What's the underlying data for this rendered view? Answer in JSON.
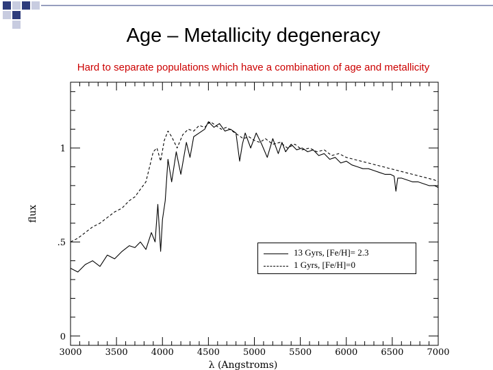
{
  "slide": {
    "title": "Age – Metallicity degeneracy",
    "subtitle": "Hard to separate populations which have a combination of age and metallicity",
    "accent_color": "#2e3c7c",
    "subtitle_color": "#cc0000"
  },
  "chart_data": {
    "type": "line",
    "title": "",
    "xlabel": "λ (Angstroms)",
    "ylabel": "flux",
    "xlim": [
      3000,
      7000
    ],
    "ylim": [
      -0.05,
      1.35
    ],
    "x_ticks": [
      3000,
      3500,
      4000,
      4500,
      5000,
      5500,
      6000,
      6500,
      7000
    ],
    "x_tick_labels": [
      "3000",
      "3500",
      "4000",
      "4500",
      "5000",
      "5500",
      "6000",
      "6500",
      "7000"
    ],
    "y_ticks": [
      0,
      0.5,
      1
    ],
    "y_tick_labels": [
      "0",
      ".5",
      "1"
    ],
    "legend_position": "center-right",
    "series": [
      {
        "name": "13 Gyrs, [Fe/H]= 2.3",
        "style": "solid",
        "x": [
          3000,
          3080,
          3160,
          3240,
          3320,
          3400,
          3480,
          3560,
          3640,
          3700,
          3760,
          3820,
          3880,
          3920,
          3950,
          3980,
          4000,
          4030,
          4060,
          4100,
          4150,
          4200,
          4260,
          4300,
          4340,
          4400,
          4460,
          4500,
          4560,
          4620,
          4680,
          4740,
          4800,
          4840,
          4870,
          4900,
          4960,
          5020,
          5080,
          5140,
          5200,
          5260,
          5300,
          5340,
          5400,
          5460,
          5520,
          5580,
          5640,
          5700,
          5760,
          5820,
          5880,
          5940,
          6000,
          6060,
          6120,
          6180,
          6240,
          6300,
          6360,
          6420,
          6480,
          6520,
          6540,
          6560,
          6600,
          6660,
          6720,
          6780,
          6840,
          6900,
          6960,
          7000
        ],
        "y": [
          0.36,
          0.34,
          0.38,
          0.4,
          0.37,
          0.43,
          0.41,
          0.45,
          0.48,
          0.47,
          0.5,
          0.46,
          0.55,
          0.5,
          0.7,
          0.45,
          0.62,
          0.72,
          0.94,
          0.82,
          0.98,
          0.86,
          1.03,
          0.95,
          1.06,
          1.08,
          1.1,
          1.14,
          1.11,
          1.13,
          1.09,
          1.1,
          1.08,
          0.93,
          1.02,
          1.08,
          1.0,
          1.08,
          1.02,
          0.95,
          1.05,
          0.97,
          1.03,
          0.98,
          1.02,
          0.99,
          1.0,
          0.98,
          0.99,
          0.96,
          0.97,
          0.94,
          0.95,
          0.92,
          0.93,
          0.91,
          0.9,
          0.89,
          0.89,
          0.88,
          0.87,
          0.86,
          0.86,
          0.85,
          0.77,
          0.84,
          0.84,
          0.83,
          0.82,
          0.82,
          0.81,
          0.8,
          0.8,
          0.79
        ]
      },
      {
        "name": "1 Gyrs, [Fe/H]=0",
        "style": "dashed",
        "x": [
          3000,
          3080,
          3160,
          3240,
          3320,
          3400,
          3480,
          3560,
          3640,
          3700,
          3760,
          3820,
          3860,
          3900,
          3940,
          3980,
          4020,
          4060,
          4100,
          4160,
          4220,
          4280,
          4340,
          4400,
          4460,
          4520,
          4580,
          4640,
          4700,
          4760,
          4820,
          4880,
          4940,
          5000,
          5060,
          5120,
          5200,
          5280,
          5360,
          5440,
          5520,
          5600,
          5680,
          5760,
          5840,
          5920,
          6000,
          6080,
          6160,
          6240,
          6320,
          6400,
          6480,
          6560,
          6640,
          6720,
          6800,
          6880,
          6960,
          7000
        ],
        "y": [
          0.5,
          0.52,
          0.55,
          0.58,
          0.6,
          0.63,
          0.66,
          0.68,
          0.72,
          0.74,
          0.78,
          0.82,
          0.9,
          0.98,
          1.0,
          0.93,
          1.04,
          1.09,
          1.06,
          1.0,
          1.07,
          1.1,
          1.09,
          1.12,
          1.11,
          1.14,
          1.12,
          1.1,
          1.11,
          1.09,
          1.07,
          1.05,
          1.06,
          1.04,
          1.03,
          1.05,
          1.02,
          1.03,
          1.0,
          1.02,
          0.99,
          1.0,
          0.98,
          0.99,
          0.96,
          0.97,
          0.95,
          0.94,
          0.93,
          0.92,
          0.91,
          0.9,
          0.89,
          0.88,
          0.87,
          0.86,
          0.85,
          0.84,
          0.83,
          0.82
        ]
      }
    ],
    "legend": [
      {
        "label": "13 Gyrs, [Fe/H]= 2.3",
        "style": "solid"
      },
      {
        "label": "1 Gyrs, [Fe/H]=0",
        "style": "dashed"
      }
    ]
  }
}
